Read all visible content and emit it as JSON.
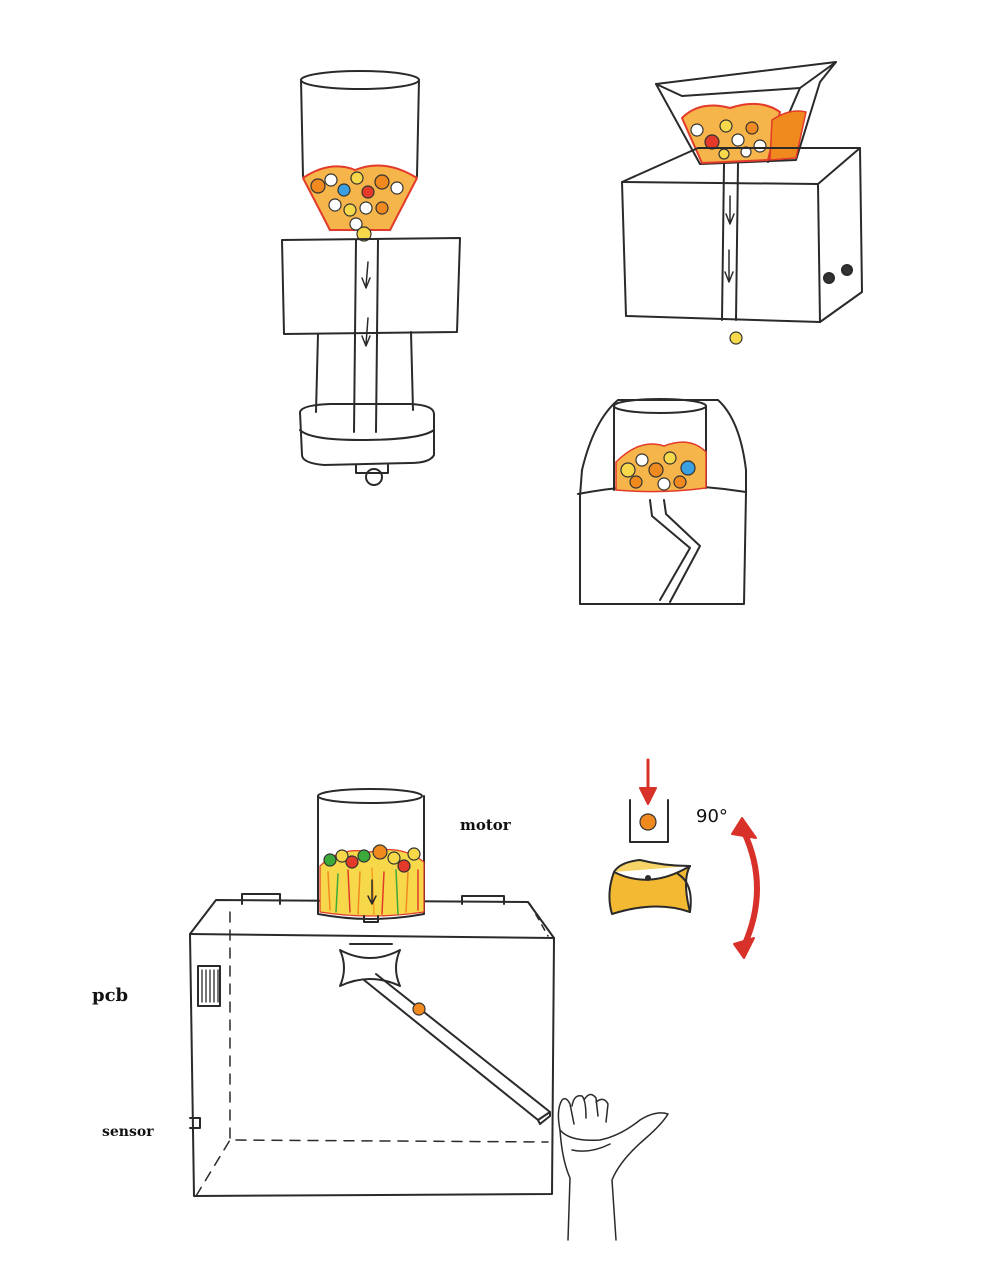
{
  "labels": {
    "motor": "motor",
    "pcb": "pcb",
    "sensor": "sensor",
    "rotation_angle": "90°"
  },
  "colors": {
    "line": "#2a2a2a",
    "candy_orange": "#f08a1e",
    "candy_yellow": "#f6d84a",
    "candy_red": "#e33a2a",
    "candy_blue": "#3aa0e0",
    "candy_green": "#3caa3a",
    "rotation_arrow": "#d8312a",
    "rotor_fill": "#f3b933"
  },
  "icons": {
    "hand": "hand-icon",
    "rotation_arrow": "curved-double-arrow-icon",
    "drop_arrow": "down-arrow-icon"
  }
}
